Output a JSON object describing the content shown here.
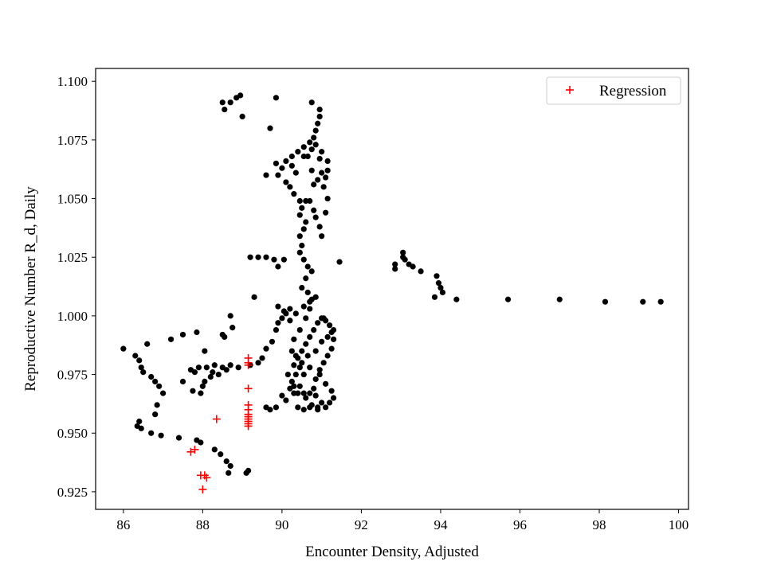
{
  "chart_data": {
    "type": "scatter",
    "xlabel": "Encounter Density, Adjusted",
    "ylabel": "Reproductive Number R_d, Daily",
    "xlim": [
      85.3,
      100.25
    ],
    "ylim": [
      0.9175,
      1.1055
    ],
    "xticks": [
      86,
      88,
      90,
      92,
      94,
      96,
      98,
      100
    ],
    "xtick_labels": [
      "86",
      "88",
      "90",
      "92",
      "94",
      "96",
      "98",
      "100"
    ],
    "yticks": [
      0.925,
      0.95,
      0.975,
      1.0,
      1.025,
      1.05,
      1.075,
      1.1
    ],
    "ytick_labels": [
      "0.925",
      "0.950",
      "0.975",
      "1.000",
      "1.025",
      "1.050",
      "1.075",
      "1.100"
    ],
    "grid": false,
    "legend_position": "top-right",
    "series": [
      {
        "marker": "dot",
        "color": "#000000",
        "points": [
          [
            86.0,
            0.986
          ],
          [
            86.3,
            0.983
          ],
          [
            86.4,
            0.981
          ],
          [
            86.45,
            0.978
          ],
          [
            86.5,
            0.976
          ],
          [
            86.6,
            0.988
          ],
          [
            86.7,
            0.974
          ],
          [
            86.8,
            0.972
          ],
          [
            86.9,
            0.97
          ],
          [
            87.0,
            0.967
          ],
          [
            86.85,
            0.962
          ],
          [
            86.8,
            0.958
          ],
          [
            86.4,
            0.955
          ],
          [
            86.35,
            0.953
          ],
          [
            86.45,
            0.952
          ],
          [
            86.7,
            0.95
          ],
          [
            86.95,
            0.949
          ],
          [
            87.2,
            0.99
          ],
          [
            87.5,
            0.992
          ],
          [
            87.5,
            0.972
          ],
          [
            87.85,
            0.993
          ],
          [
            87.4,
            0.948
          ],
          [
            87.85,
            0.947
          ],
          [
            87.95,
            0.946
          ],
          [
            88.3,
            0.943
          ],
          [
            88.45,
            0.941
          ],
          [
            88.6,
            0.938
          ],
          [
            88.7,
            0.936
          ],
          [
            88.65,
            0.933
          ],
          [
            89.15,
            0.934
          ],
          [
            89.1,
            0.933
          ],
          [
            87.7,
            0.977
          ],
          [
            87.9,
            0.978
          ],
          [
            88.1,
            0.978
          ],
          [
            88.3,
            0.979
          ],
          [
            88.5,
            0.978
          ],
          [
            88.7,
            0.979
          ],
          [
            88.9,
            0.978
          ],
          [
            87.75,
            0.968
          ],
          [
            87.95,
            0.967
          ],
          [
            88.05,
            0.972
          ],
          [
            88.2,
            0.974
          ],
          [
            88.4,
            0.975
          ],
          [
            88.6,
            0.977
          ],
          [
            88.05,
            0.985
          ],
          [
            88.5,
            0.992
          ],
          [
            88.7,
            1.0
          ],
          [
            88.75,
            0.995
          ],
          [
            87.8,
            0.976
          ],
          [
            88.0,
            0.97
          ],
          [
            88.25,
            0.976
          ],
          [
            88.55,
            0.991
          ],
          [
            88.7,
            1.091
          ],
          [
            88.85,
            1.093
          ],
          [
            88.95,
            1.094
          ],
          [
            89.0,
            1.085
          ],
          [
            88.5,
            1.091
          ],
          [
            88.55,
            1.088
          ],
          [
            89.2,
            1.025
          ],
          [
            89.4,
            1.025
          ],
          [
            89.6,
            1.025
          ],
          [
            89.8,
            1.024
          ],
          [
            89.9,
            1.021
          ],
          [
            90.05,
            1.024
          ],
          [
            89.3,
            1.008
          ],
          [
            89.5,
            0.982
          ],
          [
            89.4,
            0.98
          ],
          [
            89.2,
            0.979
          ],
          [
            89.6,
            0.986
          ],
          [
            89.75,
            0.989
          ],
          [
            89.85,
            0.994
          ],
          [
            89.9,
            0.997
          ],
          [
            90.0,
            0.999
          ],
          [
            90.1,
            1.001
          ],
          [
            90.2,
            1.003
          ],
          [
            89.9,
            1.004
          ],
          [
            90.05,
            1.002
          ],
          [
            89.6,
            0.961
          ],
          [
            89.7,
            0.96
          ],
          [
            89.85,
            0.961
          ],
          [
            90.0,
            0.966
          ],
          [
            90.1,
            0.964
          ],
          [
            90.2,
            0.969
          ],
          [
            90.3,
            0.967
          ],
          [
            90.15,
            0.975
          ],
          [
            90.3,
            0.979
          ],
          [
            90.4,
            0.982
          ],
          [
            90.5,
            0.985
          ],
          [
            90.6,
            0.988
          ],
          [
            90.7,
            0.991
          ],
          [
            90.8,
            0.994
          ],
          [
            90.9,
            0.997
          ],
          [
            91.0,
            0.999
          ],
          [
            91.1,
            0.998
          ],
          [
            91.2,
            0.996
          ],
          [
            91.25,
            0.993
          ],
          [
            91.3,
            0.99
          ],
          [
            91.25,
            0.986
          ],
          [
            91.15,
            0.983
          ],
          [
            91.05,
            0.98
          ],
          [
            90.95,
            0.977
          ],
          [
            90.85,
            0.973
          ],
          [
            90.8,
            0.969
          ],
          [
            90.85,
            0.966
          ],
          [
            91.0,
            0.963
          ],
          [
            91.1,
            0.961
          ],
          [
            91.2,
            0.963
          ],
          [
            91.3,
            0.965
          ],
          [
            91.25,
            0.968
          ],
          [
            91.1,
            0.971
          ],
          [
            90.95,
            0.975
          ],
          [
            90.4,
            0.961
          ],
          [
            90.55,
            0.96
          ],
          [
            90.7,
            0.961
          ],
          [
            90.9,
            0.961
          ],
          [
            90.3,
            0.97
          ],
          [
            90.4,
            0.967
          ],
          [
            90.55,
            0.967
          ],
          [
            90.7,
            0.967
          ],
          [
            90.55,
            0.975
          ],
          [
            90.7,
            0.978
          ],
          [
            90.45,
            0.978
          ],
          [
            90.35,
            0.983
          ],
          [
            90.25,
            0.985
          ],
          [
            90.3,
            0.99
          ],
          [
            90.45,
            0.994
          ],
          [
            90.6,
            0.999
          ],
          [
            90.7,
            1.003
          ],
          [
            90.75,
            1.007
          ],
          [
            90.65,
            1.01
          ],
          [
            90.5,
            1.012
          ],
          [
            90.6,
            1.016
          ],
          [
            90.75,
            1.019
          ],
          [
            90.65,
            1.021
          ],
          [
            90.55,
            1.024
          ],
          [
            90.45,
            1.027
          ],
          [
            90.5,
            1.03
          ],
          [
            90.45,
            1.034
          ],
          [
            90.55,
            1.037
          ],
          [
            90.6,
            1.04
          ],
          [
            90.45,
            1.043
          ],
          [
            90.5,
            1.046
          ],
          [
            90.6,
            1.049
          ],
          [
            90.7,
            1.049
          ],
          [
            90.8,
            1.045
          ],
          [
            90.85,
            1.042
          ],
          [
            90.95,
            1.038
          ],
          [
            91.0,
            1.034
          ],
          [
            91.1,
            1.044
          ],
          [
            91.15,
            1.05
          ],
          [
            91.05,
            1.055
          ],
          [
            91.1,
            1.059
          ],
          [
            91.0,
            1.061
          ],
          [
            90.9,
            1.058
          ],
          [
            90.8,
            1.056
          ],
          [
            91.15,
            1.062
          ],
          [
            91.15,
            1.066
          ],
          [
            91.0,
            1.07
          ],
          [
            90.85,
            1.073
          ],
          [
            90.7,
            1.074
          ],
          [
            90.55,
            1.072
          ],
          [
            90.4,
            1.07
          ],
          [
            90.25,
            1.068
          ],
          [
            90.1,
            1.066
          ],
          [
            90.0,
            1.063
          ],
          [
            89.9,
            1.06
          ],
          [
            89.85,
            1.065
          ],
          [
            90.2,
            1.055
          ],
          [
            90.3,
            1.052
          ],
          [
            90.45,
            1.049
          ],
          [
            90.65,
            1.068
          ],
          [
            90.75,
            1.071
          ],
          [
            90.8,
            1.076
          ],
          [
            90.85,
            1.079
          ],
          [
            90.9,
            1.082
          ],
          [
            90.95,
            1.085
          ],
          [
            90.95,
            1.088
          ],
          [
            90.75,
            1.091
          ],
          [
            89.85,
            1.093
          ],
          [
            89.7,
            1.08
          ],
          [
            89.6,
            1.06
          ],
          [
            90.1,
            1.057
          ],
          [
            90.25,
            1.064
          ],
          [
            90.55,
            1.068
          ],
          [
            90.35,
            1.061
          ],
          [
            90.75,
            1.062
          ],
          [
            90.95,
            1.067
          ],
          [
            90.2,
            0.998
          ],
          [
            90.35,
            1.001
          ],
          [
            90.55,
            1.004
          ],
          [
            90.7,
            1.006
          ],
          [
            90.85,
            1.008
          ],
          [
            91.05,
            0.999
          ],
          [
            91.3,
            0.994
          ],
          [
            91.15,
            0.991
          ],
          [
            91.0,
            0.989
          ],
          [
            90.85,
            0.985
          ],
          [
            90.65,
            0.983
          ],
          [
            90.5,
            0.98
          ],
          [
            90.35,
            0.975
          ],
          [
            90.25,
            0.972
          ],
          [
            90.45,
            0.97
          ],
          [
            90.6,
            0.965
          ],
          [
            90.75,
            0.962
          ],
          [
            90.9,
            0.96
          ],
          [
            91.45,
            1.023
          ],
          [
            92.85,
            1.02
          ],
          [
            92.85,
            1.022
          ],
          [
            93.05,
            1.025
          ],
          [
            93.05,
            1.027
          ],
          [
            93.1,
            1.024
          ],
          [
            93.2,
            1.022
          ],
          [
            93.3,
            1.021
          ],
          [
            93.5,
            1.019
          ],
          [
            93.9,
            1.017
          ],
          [
            93.95,
            1.014
          ],
          [
            94.0,
            1.012
          ],
          [
            94.05,
            1.01
          ],
          [
            93.85,
            1.008
          ],
          [
            94.4,
            1.007
          ],
          [
            95.7,
            1.007
          ],
          [
            97.0,
            1.007
          ],
          [
            98.15,
            1.006
          ],
          [
            99.1,
            1.006
          ],
          [
            99.55,
            1.006
          ]
        ]
      },
      {
        "name": "Regression",
        "marker": "plus",
        "color": "#ff0000",
        "points": [
          [
            89.15,
            0.982
          ],
          [
            89.15,
            0.98
          ],
          [
            89.15,
            0.979
          ],
          [
            89.15,
            0.969
          ],
          [
            89.15,
            0.962
          ],
          [
            89.15,
            0.96
          ],
          [
            89.15,
            0.958
          ],
          [
            89.15,
            0.957
          ],
          [
            89.15,
            0.956
          ],
          [
            89.15,
            0.955
          ],
          [
            89.15,
            0.954
          ],
          [
            89.15,
            0.953
          ],
          [
            88.35,
            0.956
          ],
          [
            87.8,
            0.943
          ],
          [
            87.7,
            0.942
          ],
          [
            87.95,
            0.932
          ],
          [
            88.05,
            0.932
          ],
          [
            88.1,
            0.931
          ],
          [
            88.0,
            0.926
          ]
        ]
      }
    ]
  }
}
